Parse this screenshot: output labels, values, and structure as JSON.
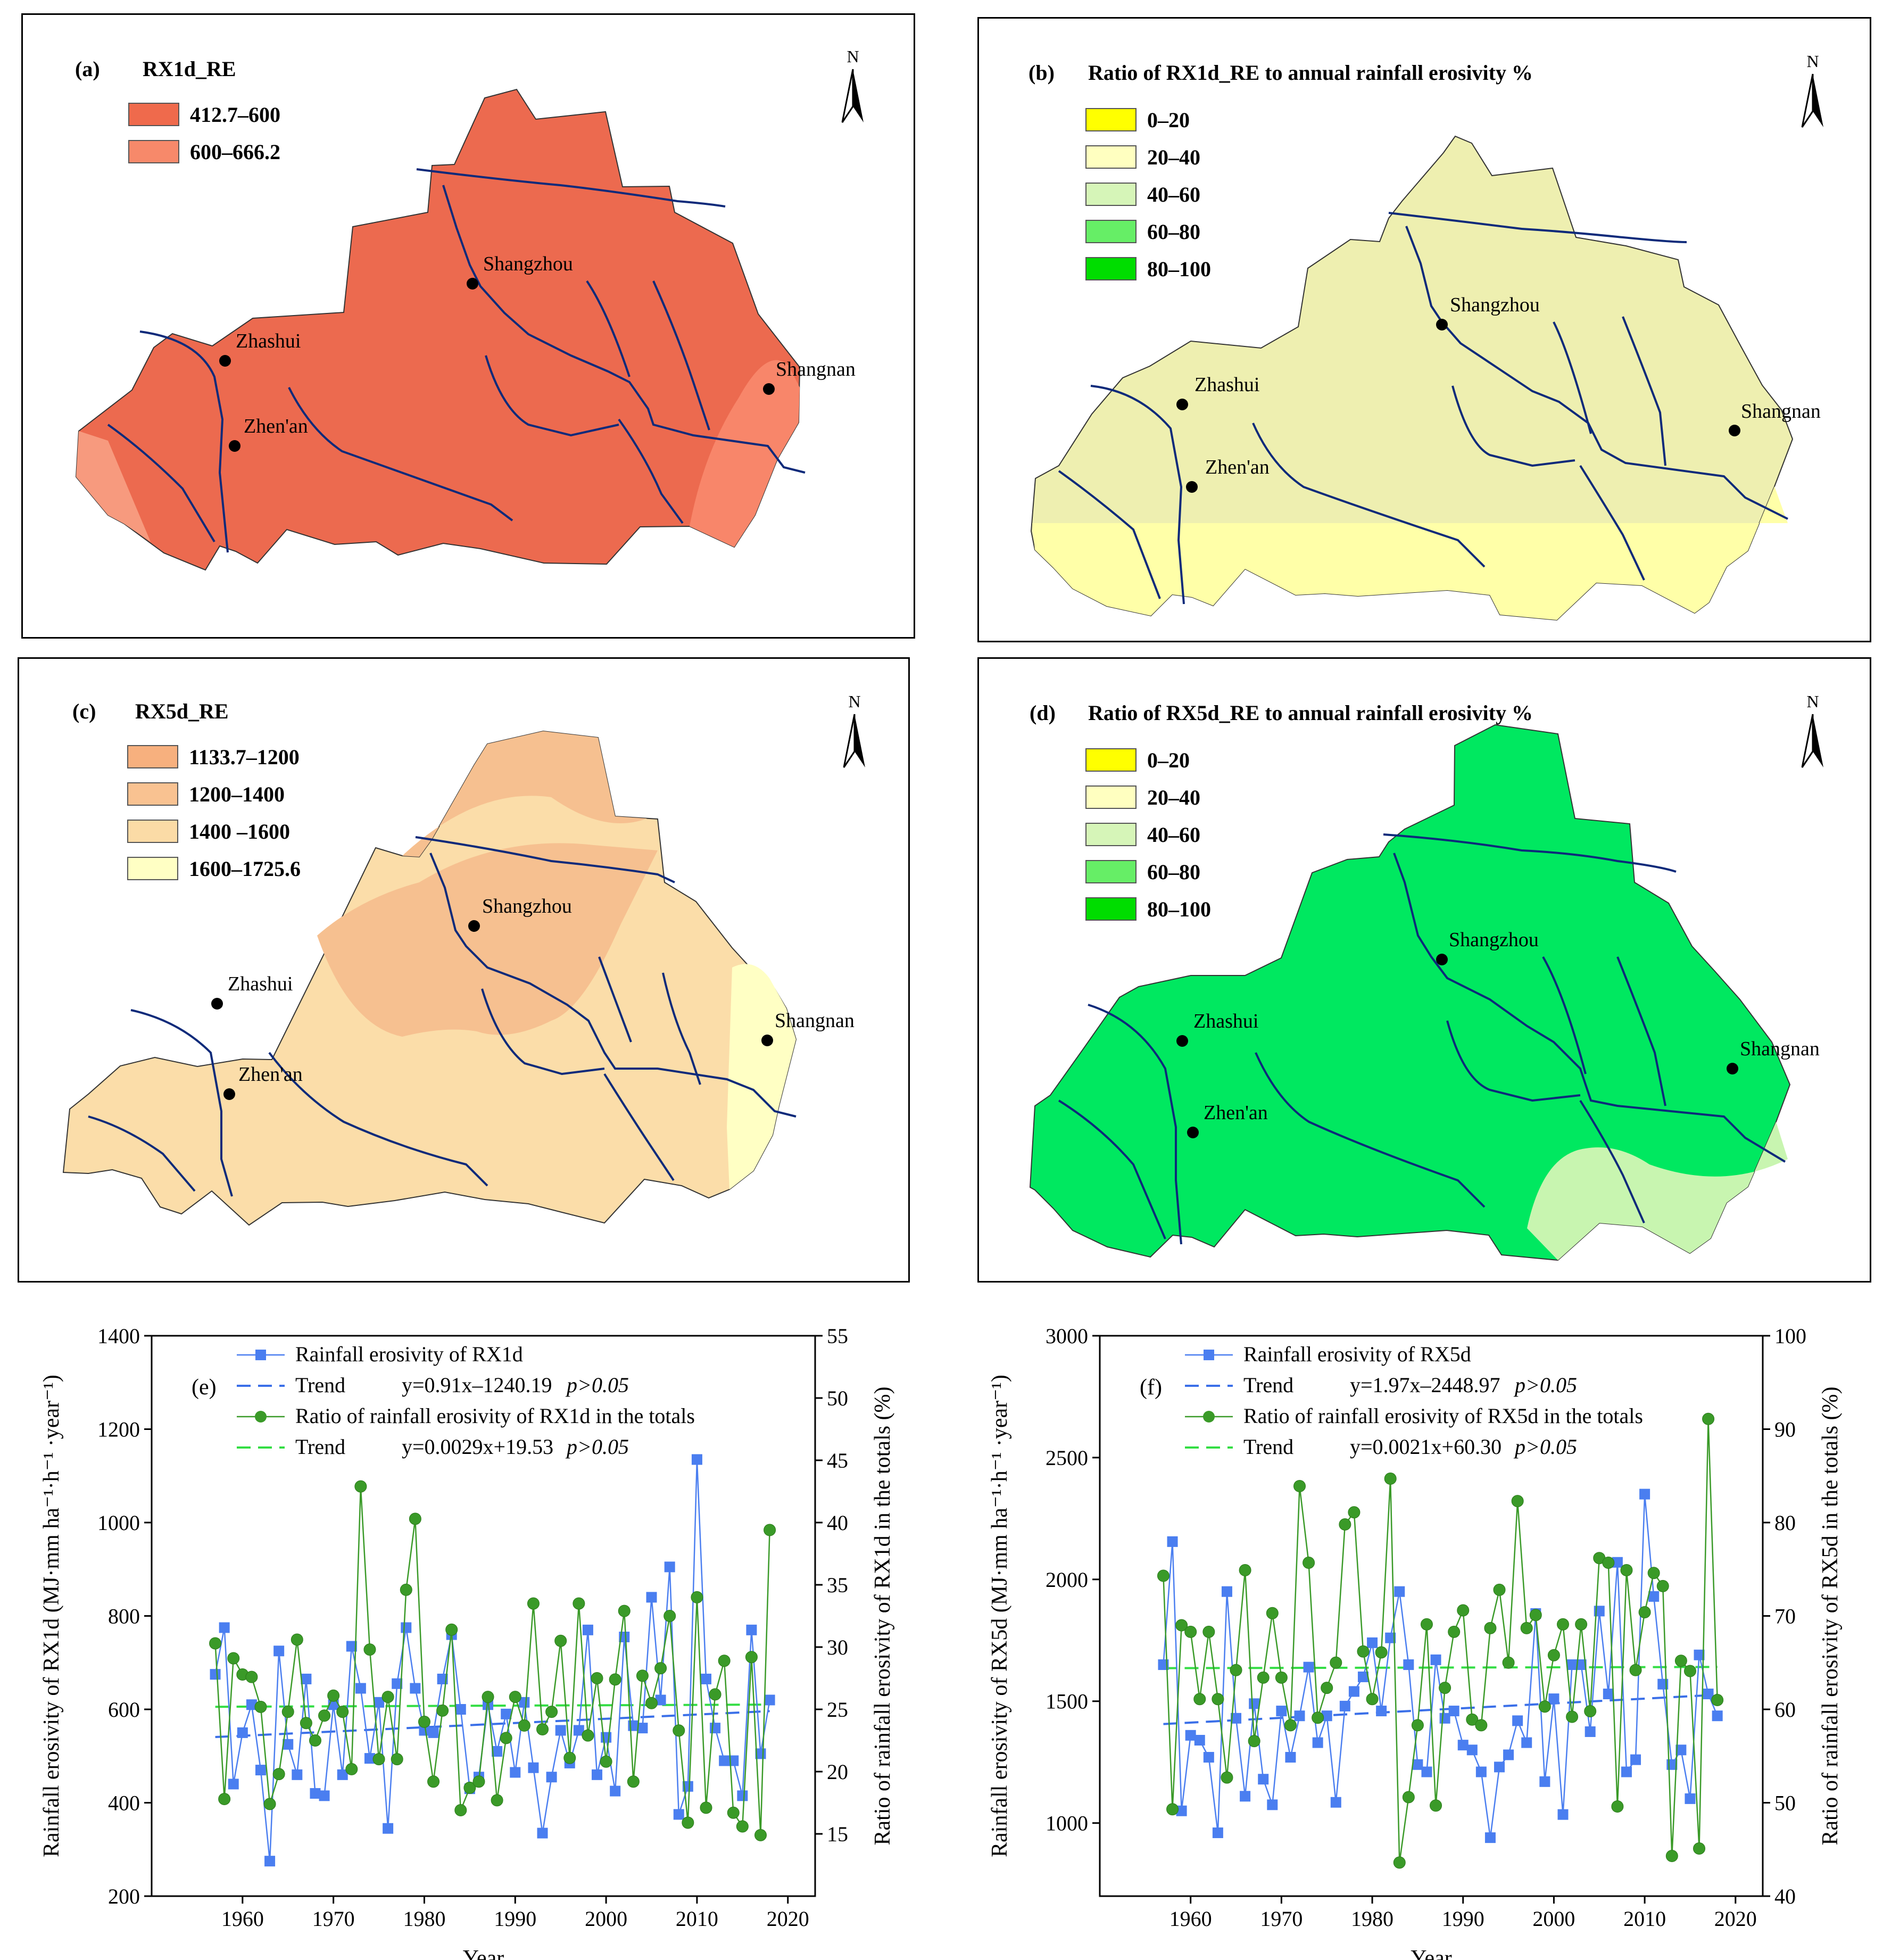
{
  "maps": [
    {
      "id": "a",
      "panel_label": "(a)",
      "legend_title": "RX1d_RE",
      "legend": [
        {
          "label": "412.7–600",
          "color": "#ef6a4c"
        },
        {
          "label": "600–666.2",
          "color": "#f7896a"
        }
      ],
      "base_color": "#ec6a4f",
      "accent_color": "#f8866a",
      "north": "N",
      "cities": [
        "Shangzhou",
        "Zhashui",
        "Zhen'an",
        "Shangnan"
      ]
    },
    {
      "id": "b",
      "panel_label": "(b)",
      "legend_title": "Ratio of RX1d_RE to annual rainfall erosivity %",
      "legend": [
        {
          "label": "0–20",
          "color": "#ffff00"
        },
        {
          "label": "20–40",
          "color": "#ffffc0"
        },
        {
          "label": "40–60",
          "color": "#d6f5b8"
        },
        {
          "label": "60–80",
          "color": "#66ee66"
        },
        {
          "label": "80–100",
          "color": "#00dd00"
        }
      ],
      "base_color": "#eeefb0",
      "accent_color": "#ffffa8",
      "north": "N",
      "cities": [
        "Shangzhou",
        "Zhashui",
        "Zhen'an",
        "Shangnan"
      ]
    },
    {
      "id": "c",
      "panel_label": "(c)",
      "legend_title": "RX5d_RE",
      "legend": [
        {
          "label": "1133.7–1200",
          "color": "#f7b07e"
        },
        {
          "label": "1200–1400",
          "color": "#f9c291"
        },
        {
          "label": "1400 –1600",
          "color": "#fbdba6"
        },
        {
          "label": "1600–1725.6",
          "color": "#ffffc4"
        }
      ],
      "base_color": "#fbdda9",
      "accent_color": "#f6c090",
      "north": "N",
      "cities": [
        "Shangzhou",
        "Zhashui",
        "Zhen'an",
        "Shangnan"
      ]
    },
    {
      "id": "d",
      "panel_label": "(d)",
      "legend_title": "Ratio of RX5d_RE to annual rainfall erosivity %",
      "legend": [
        {
          "label": "0–20",
          "color": "#ffff00"
        },
        {
          "label": "20–40",
          "color": "#ffffc0"
        },
        {
          "label": "40–60",
          "color": "#d6f5b8"
        },
        {
          "label": "60–80",
          "color": "#66ee66"
        },
        {
          "label": "80–100",
          "color": "#00dd00"
        }
      ],
      "base_color": "#00e860",
      "accent_color": "#c8f5b0",
      "north": "N",
      "cities": [
        "Shangzhou",
        "Zhashui",
        "Zhen'an",
        "Shangnan"
      ]
    }
  ],
  "chart_data": [
    {
      "type": "line",
      "panel_label": "(e)",
      "title": "",
      "xlabel": "Year",
      "ylabel_left": "Rainfall erosivity of RX1d (MJ·mm ha⁻¹·h⁻¹ ·year⁻¹)",
      "ylabel_right": "Ratio of rainfall erosivity of RX1d in the totals (%)",
      "xlim": [
        1950,
        2023
      ],
      "ylim_left": [
        200,
        1400
      ],
      "ylim_right": [
        10,
        55
      ],
      "xticks": [
        1960,
        1970,
        1980,
        1990,
        2000,
        2010,
        2020
      ],
      "yticks_left": [
        200,
        400,
        600,
        800,
        1000,
        1200,
        1400
      ],
      "yticks_right": [
        15,
        20,
        25,
        30,
        35,
        40,
        45,
        50,
        55
      ],
      "x": [
        1957,
        1958,
        1959,
        1960,
        1961,
        1962,
        1963,
        1964,
        1965,
        1966,
        1967,
        1968,
        1969,
        1970,
        1971,
        1972,
        1973,
        1974,
        1975,
        1976,
        1977,
        1978,
        1979,
        1980,
        1981,
        1982,
        1983,
        1984,
        1985,
        1986,
        1987,
        1988,
        1989,
        1990,
        1991,
        1992,
        1993,
        1994,
        1995,
        1996,
        1997,
        1998,
        1999,
        2000,
        2001,
        2002,
        2003,
        2004,
        2005,
        2006,
        2007,
        2008,
        2009,
        2010,
        2011,
        2012,
        2013,
        2014,
        2015,
        2016,
        2017,
        2018
      ],
      "series": [
        {
          "name": "Rainfall erosivity of RX1d",
          "axis": "left",
          "marker": "square",
          "color": "#4a7ef0",
          "values": [
            675,
            775,
            440,
            550,
            610,
            470,
            275,
            725,
            525,
            460,
            665,
            420,
            415,
            610,
            460,
            735,
            645,
            495,
            615,
            345,
            655,
            775,
            645,
            555,
            550,
            665,
            760,
            600,
            430,
            455,
            610,
            510,
            590,
            465,
            615,
            475,
            335,
            455,
            555,
            485,
            555,
            770,
            460,
            540,
            425,
            755,
            565,
            560,
            840,
            620,
            905,
            375,
            435,
            1135,
            665,
            560,
            490,
            490,
            415,
            770,
            505,
            620
          ]
        },
        {
          "name": "Ratio of rainfall erosivity of RX1d in the totals",
          "axis": "right",
          "marker": "circle",
          "color": "#3a9a28",
          "values": [
            30.3,
            17.8,
            29.1,
            27.8,
            27.6,
            25.2,
            17.4,
            19.8,
            24.8,
            30.6,
            23.9,
            22.5,
            24.5,
            26.1,
            24.8,
            20.2,
            42.9,
            29.8,
            21.0,
            26.0,
            21.0,
            34.6,
            40.3,
            24.0,
            19.2,
            24.9,
            31.4,
            16.9,
            18.7,
            19.2,
            26.0,
            17.7,
            22.7,
            26.0,
            23.7,
            33.5,
            23.4,
            24.8,
            30.5,
            21.1,
            33.5,
            22.9,
            27.5,
            20.8,
            27.4,
            32.9,
            19.2,
            27.7,
            25.5,
            28.3,
            32.5,
            23.3,
            15.9,
            34.0,
            17.1,
            26.2,
            28.9,
            16.7,
            15.6,
            29.2,
            14.9,
            39.4
          ]
        }
      ],
      "trends": [
        {
          "name": "Trend",
          "equation": "y=0.91x–1240.19",
          "p": "p>0.05",
          "axis": "left",
          "color": "#3a6fe8",
          "slope": 0.91,
          "intercept": -1240.19
        },
        {
          "name": "Trend",
          "equation": "y=0.0029x+19.53",
          "p": "p>0.05",
          "axis": "right",
          "color": "#33dd44",
          "slope": 0.0029,
          "intercept": 19.53
        }
      ],
      "legend_placement": "top-center"
    },
    {
      "type": "line",
      "panel_label": "(f)",
      "title": "",
      "xlabel": "Year",
      "ylabel_left": "Rainfall erosivity of RX5d (MJ·mm ha⁻¹·h⁻¹ ·year⁻¹)",
      "ylabel_right": "Ratio of rainfall erosivity of RX5d in the totals (%)",
      "xlim": [
        1950,
        2023
      ],
      "ylim_left": [
        700,
        3000
      ],
      "ylim_right": [
        40,
        100
      ],
      "xticks": [
        1960,
        1970,
        1980,
        1990,
        2000,
        2010,
        2020
      ],
      "yticks_left": [
        1000,
        1500,
        2000,
        2500,
        3000
      ],
      "yticks_right": [
        40,
        50,
        60,
        70,
        80,
        90,
        100
      ],
      "x": [
        1957,
        1958,
        1959,
        1960,
        1961,
        1962,
        1963,
        1964,
        1965,
        1966,
        1967,
        1968,
        1969,
        1970,
        1971,
        1972,
        1973,
        1974,
        1975,
        1976,
        1977,
        1978,
        1979,
        1980,
        1981,
        1982,
        1983,
        1984,
        1985,
        1986,
        1987,
        1988,
        1989,
        1990,
        1991,
        1992,
        1993,
        1994,
        1995,
        1996,
        1997,
        1998,
        1999,
        2000,
        2001,
        2002,
        2003,
        2004,
        2005,
        2006,
        2007,
        2008,
        2009,
        2010,
        2011,
        2012,
        2013,
        2014,
        2015,
        2016,
        2017,
        2018
      ],
      "series": [
        {
          "name": "Rainfall erosivity of RX5d",
          "axis": "left",
          "marker": "square",
          "color": "#4a7ef0",
          "values": [
            1650,
            2155,
            1050,
            1360,
            1340,
            1270,
            960,
            1950,
            1430,
            1110,
            1490,
            1180,
            1075,
            1460,
            1270,
            1440,
            1640,
            1330,
            1440,
            1085,
            1480,
            1540,
            1600,
            1740,
            1460,
            1760,
            1950,
            1650,
            1240,
            1210,
            1670,
            1430,
            1460,
            1320,
            1300,
            1210,
            940,
            1230,
            1280,
            1420,
            1330,
            1860,
            1170,
            1510,
            1035,
            1650,
            1650,
            1375,
            1870,
            1530,
            2070,
            1210,
            1260,
            2350,
            1930,
            1570,
            1240,
            1300,
            1100,
            1690,
            1530,
            1440
          ]
        },
        {
          "name": "Ratio of rainfall erosivity of RX5d in the totals",
          "axis": "right",
          "marker": "circle",
          "color": "#3a9a28",
          "values": [
            74.3,
            49.3,
            69.0,
            68.3,
            61.1,
            68.3,
            61.1,
            52.7,
            64.2,
            74.9,
            56.6,
            63.4,
            70.3,
            63.4,
            58.3,
            83.9,
            75.7,
            59.1,
            62.3,
            65.0,
            79.8,
            81.1,
            66.2,
            61.1,
            66.1,
            84.7,
            43.6,
            50.6,
            58.3,
            69.1,
            49.7,
            62.3,
            68.3,
            70.6,
            58.9,
            58.3,
            68.7,
            72.8,
            65.0,
            82.3,
            68.7,
            70.1,
            60.3,
            65.8,
            69.1,
            59.2,
            69.1,
            59.8,
            76.2,
            75.7,
            49.6,
            74.9,
            64.2,
            70.4,
            74.6,
            73.2,
            44.3,
            65.2,
            64.1,
            45.1,
            91.1,
            61.0
          ]
        }
      ],
      "trends": [
        {
          "name": "Trend",
          "equation": "y=1.97x–2448.97",
          "p": "p>0.05",
          "axis": "left",
          "color": "#3a6fe8",
          "slope": 1.97,
          "intercept": -2448.97
        },
        {
          "name": "Trend",
          "equation": "y=0.0021x+60.30",
          "p": "p>0.05",
          "axis": "right",
          "color": "#33dd44",
          "slope": 0.0021,
          "intercept": 60.3
        }
      ],
      "legend_placement": "top-center"
    }
  ]
}
